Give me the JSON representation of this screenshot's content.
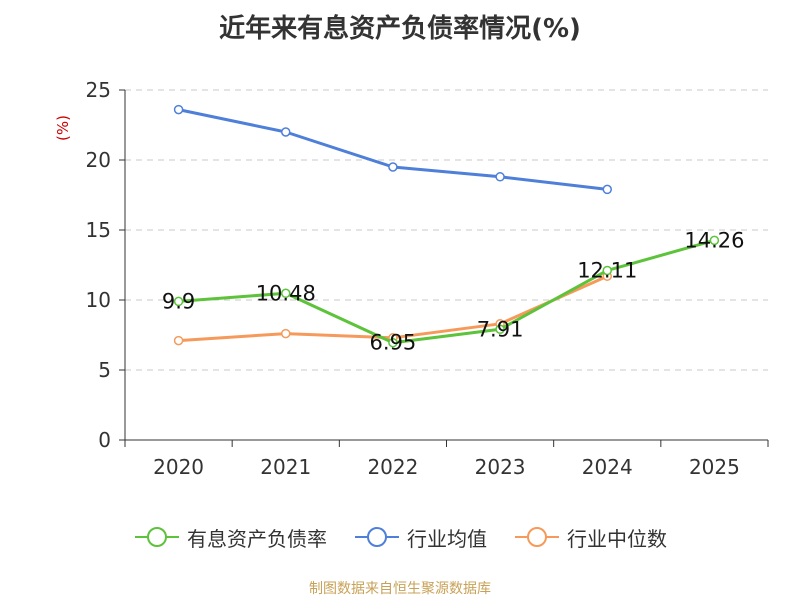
{
  "title": "近年来有息资产负债率情况(%)",
  "source": "制图数据来自恒生聚源数据库",
  "chart_data": {
    "type": "line",
    "title": "近年来有息资产负债率情况(%)",
    "xlabel": "",
    "ylabel": "(%)",
    "categories": [
      "2020",
      "2021",
      "2022",
      "2023",
      "2024",
      "2025"
    ],
    "ylim": [
      0,
      25
    ],
    "yticks": [
      0,
      5,
      10,
      15,
      20,
      25
    ],
    "grid": true,
    "legend_position": "bottom",
    "series": [
      {
        "name": "有息资产负债率",
        "color": "#5cc33a",
        "values": [
          9.9,
          10.48,
          6.95,
          7.91,
          12.11,
          14.26
        ],
        "labels": [
          "9.9",
          "10.48",
          "6.95",
          "7.91",
          "12.11",
          "14.26"
        ]
      },
      {
        "name": "行业均值",
        "color": "#4e7fd9",
        "values": [
          23.6,
          22.0,
          19.5,
          18.8,
          17.9,
          null
        ]
      },
      {
        "name": "行业中位数",
        "color": "#f59a5a",
        "values": [
          7.1,
          7.6,
          7.3,
          8.3,
          11.7,
          null
        ]
      }
    ]
  }
}
